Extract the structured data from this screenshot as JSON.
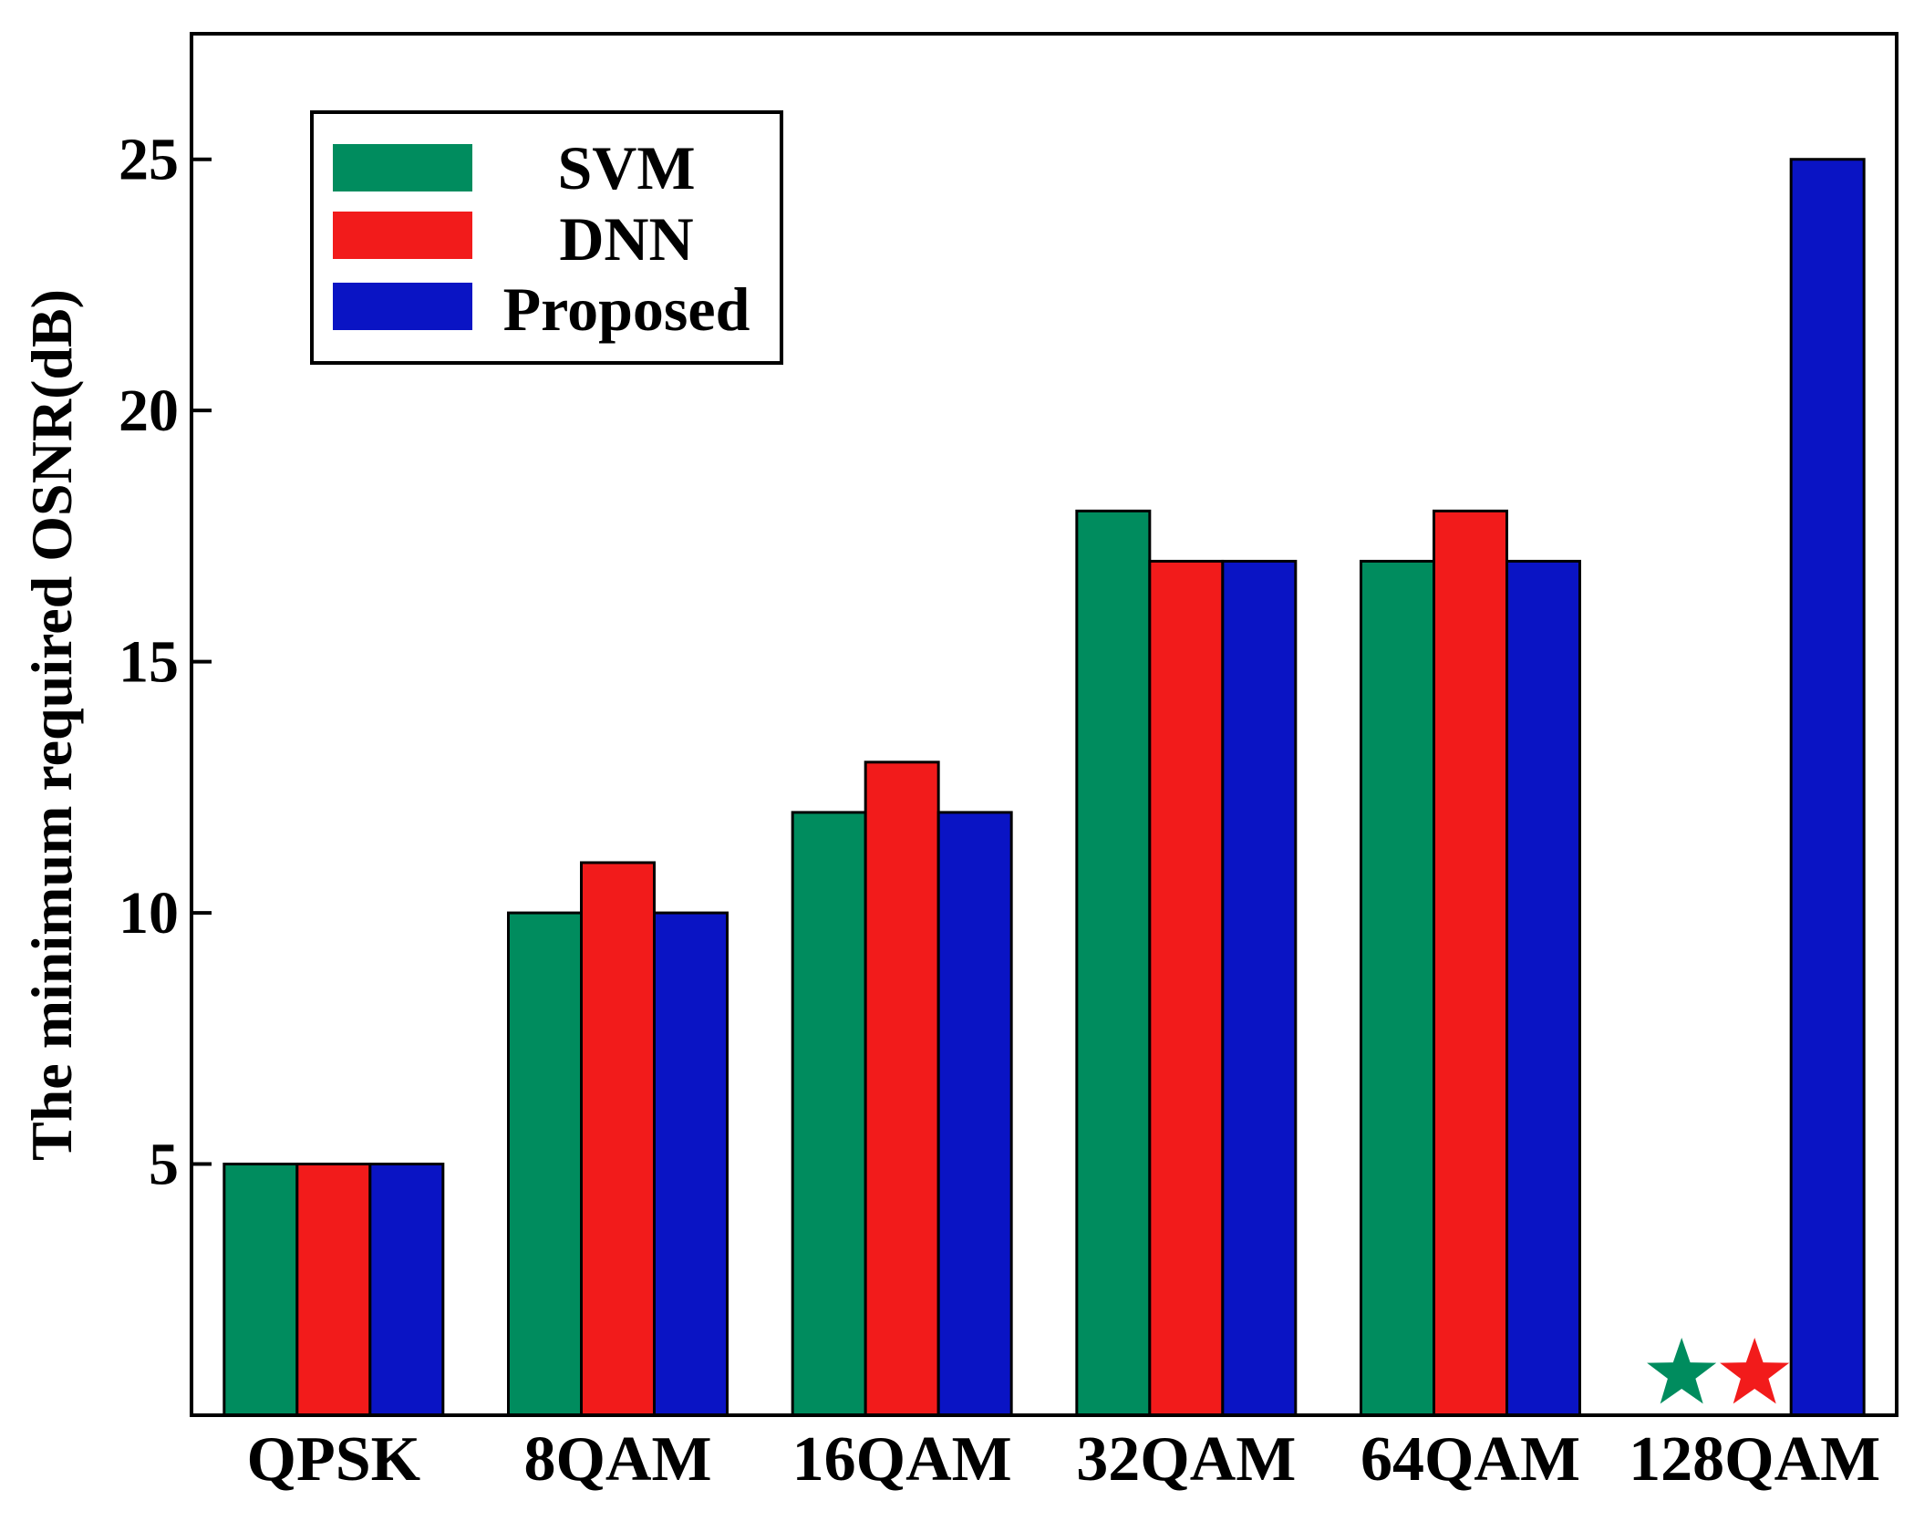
{
  "chart_data": {
    "type": "bar",
    "title": "",
    "xlabel": "",
    "ylabel": "The minimum required OSNR(dB)",
    "ylim": [
      0,
      27.5
    ],
    "yticks": [
      5,
      10,
      15,
      20,
      25
    ],
    "categories": [
      "QPSK",
      "8QAM",
      "16QAM",
      "32QAM",
      "64QAM",
      "128QAM"
    ],
    "series": [
      {
        "name": "SVM",
        "color": "#008C5E",
        "values": [
          5,
          10,
          12,
          18,
          17,
          null
        ]
      },
      {
        "name": "DNN",
        "color": "#F21B1B",
        "values": [
          5,
          11,
          13,
          17,
          18,
          null
        ]
      },
      {
        "name": "Proposed",
        "color": "#0A14C4",
        "values": [
          5,
          10,
          12,
          17,
          17,
          25
        ]
      }
    ],
    "markers": [
      {
        "series": "SVM",
        "category": "128QAM",
        "shape": "star",
        "color": "#008C5E",
        "meaning": "no value"
      },
      {
        "series": "DNN",
        "category": "128QAM",
        "shape": "star",
        "color": "#F21B1B",
        "meaning": "no value"
      }
    ],
    "legend_position": "top-left",
    "grid": false
  }
}
